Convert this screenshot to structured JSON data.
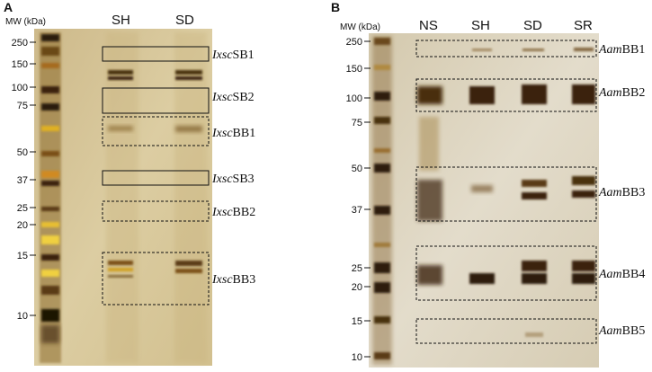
{
  "panel_a": {
    "letter": "A",
    "mw_label": "MW (kDa)",
    "lane_labels": [
      "SH",
      "SD"
    ],
    "markers": [
      "250",
      "150",
      "100",
      "75",
      "50",
      "37",
      "25",
      "20",
      "15",
      "10"
    ],
    "bands": [
      {
        "label": "IxscSB1",
        "prefix": "Ixsc",
        "suffix": "SB1",
        "box": "solid"
      },
      {
        "label": "IxscSB2",
        "prefix": "Ixsc",
        "suffix": "SB2",
        "box": "solid"
      },
      {
        "label": "IxscBB1",
        "prefix": "Ixsc",
        "suffix": "BB1",
        "box": "dashed"
      },
      {
        "label": "IxscSB3",
        "prefix": "Ixsc",
        "suffix": "SB3",
        "box": "solid"
      },
      {
        "label": "IxscBB2",
        "prefix": "Ixsc",
        "suffix": "BB2",
        "box": "dashed"
      },
      {
        "label": "IxscBB3",
        "prefix": "Ixsc",
        "suffix": "BB3",
        "box": "dashed"
      }
    ]
  },
  "panel_b": {
    "letter": "B",
    "mw_label": "MW (kDa)",
    "lane_labels": [
      "NS",
      "SH",
      "SD",
      "SR"
    ],
    "markers": [
      "250",
      "150",
      "100",
      "75",
      "50",
      "37",
      "25",
      "20",
      "15",
      "10"
    ],
    "bands": [
      {
        "label": "AamBB1",
        "prefix": "Aam",
        "suffix": "BB1",
        "box": "dashed"
      },
      {
        "label": "AamBB2",
        "prefix": "Aam",
        "suffix": "BB2",
        "box": "dashed"
      },
      {
        "label": "AamBB3",
        "prefix": "Aam",
        "suffix": "BB3",
        "box": "dashed"
      },
      {
        "label": "AamBB4",
        "prefix": "Aam",
        "suffix": "BB4",
        "box": "dashed"
      },
      {
        "label": "AamBB5",
        "prefix": "Aam",
        "suffix": "BB5",
        "box": "dashed"
      }
    ]
  },
  "colors": {
    "gel_a": "#d6c596",
    "gel_b": "#ddd5bd",
    "band_dark": "#3a2410",
    "band_brown": "#6b4318",
    "ladder_gold": "#b8860b"
  }
}
